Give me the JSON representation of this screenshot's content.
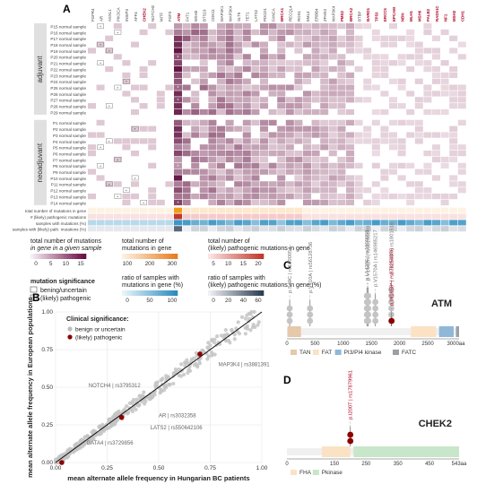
{
  "panels": {
    "A": "A",
    "B": "B",
    "C": "C",
    "D": "D"
  },
  "heatmap": {
    "groups": [
      {
        "label": "adjuvant",
        "samples": [
          "P15 normal sample",
          "P16 normal sample",
          "P17 normal sample",
          "P18 normal sample",
          "P19 normal sample",
          "P20 normal sample",
          "P21 normal sample",
          "P22 normal sample",
          "P23 normal sample",
          "P24 normal sample",
          "P25 normal sample",
          "P26 normal sample",
          "P27 normal sample",
          "P28 normal sample",
          "P29 normal sample"
        ]
      },
      {
        "label": "neoadjuvant",
        "samples": [
          "P1 normal sample",
          "P2 normal sample",
          "P3 normal sample",
          "P4 normal sample",
          "P5 normal sample",
          "P6 normal sample",
          "P7 normal sample",
          "P8 normal sample",
          "P9 normal sample",
          "P10 normal sample",
          "P11 normal sample",
          "P12 normal sample",
          "P13 normal sample",
          "P14 normal sample"
        ]
      }
    ],
    "genes": [
      {
        "name": "FGFR4",
        "path": false
      },
      {
        "name": "AR",
        "path": false
      },
      {
        "name": "ASXL1",
        "path": false
      },
      {
        "name": "PIK3CA",
        "path": false
      },
      {
        "name": "INSIP3",
        "path": false
      },
      {
        "name": "AFF4",
        "path": false
      },
      {
        "name": "CHEK2",
        "path": true
      },
      {
        "name": "NOTCH2",
        "path": false
      },
      {
        "name": "MITF",
        "path": false
      },
      {
        "name": "FGF3",
        "path": false
      },
      {
        "name": "ATM",
        "path": true
      },
      {
        "name": "FAT1",
        "path": false
      },
      {
        "name": "MSH3",
        "path": false
      },
      {
        "name": "BTS19",
        "path": false
      },
      {
        "name": "CDK11",
        "path": false
      },
      {
        "name": "MAP3K1",
        "path": false
      },
      {
        "name": "MAP3K4",
        "path": false
      },
      {
        "name": "SLT5",
        "path": false
      },
      {
        "name": "TET1",
        "path": false
      },
      {
        "name": "LATS2",
        "path": false
      },
      {
        "name": "PDCD1",
        "path": false
      },
      {
        "name": "FANCA",
        "path": false
      },
      {
        "name": "BRCA1",
        "path": true
      },
      {
        "name": "RECQL4",
        "path": false
      },
      {
        "name": "ROS1",
        "path": false
      },
      {
        "name": "EML4",
        "path": false
      },
      {
        "name": "ERBB4",
        "path": false
      },
      {
        "name": "ZFHX3",
        "path": false
      },
      {
        "name": "MAP3K4",
        "path": false
      },
      {
        "name": "PMS2",
        "path": true
      },
      {
        "name": "BRCA2",
        "path": true
      },
      {
        "name": "BTBP",
        "path": false
      },
      {
        "name": "BARD1",
        "path": true
      },
      {
        "name": "TP53",
        "path": true
      },
      {
        "name": "ERCC5",
        "path": true
      },
      {
        "name": "EPCAM",
        "path": true
      },
      {
        "name": "NBN",
        "path": true
      },
      {
        "name": "MLH1",
        "path": true
      },
      {
        "name": "MSH6",
        "path": true
      },
      {
        "name": "PALB2",
        "path": true
      },
      {
        "name": "RAD51C",
        "path": true
      },
      {
        "name": "NF1",
        "path": true
      },
      {
        "name": "MSH2",
        "path": true
      },
      {
        "name": "CDH1",
        "path": true
      }
    ],
    "atm_path_flags": [
      0,
      0,
      0,
      0,
      0,
      1,
      0,
      0,
      0,
      0,
      1,
      0,
      1,
      0,
      0,
      0,
      0,
      0,
      0,
      0,
      0,
      0,
      1,
      0,
      0,
      0,
      0,
      0,
      1
    ],
    "other_path_marks": [
      [
        0,
        1
      ],
      [
        1,
        3
      ],
      [
        3,
        1
      ],
      [
        4,
        2
      ],
      [
        6,
        1
      ],
      [
        9,
        4
      ],
      [
        10,
        3
      ],
      [
        13,
        2
      ],
      [
        16,
        5
      ],
      [
        18,
        2
      ],
      [
        19,
        1
      ],
      [
        21,
        3
      ],
      [
        22,
        1
      ],
      [
        24,
        5
      ],
      [
        25,
        2
      ],
      [
        26,
        4
      ],
      [
        27,
        3
      ],
      [
        28,
        6
      ]
    ],
    "summary_rows": [
      "total number of mutations in gene",
      "# (likely) pathogenic mutations",
      "samples with mutations (%)",
      "samples with (likely) path. mutations (%)"
    ]
  },
  "legends": {
    "mutations_sample": {
      "title1": "total number of mutations",
      "title2": "in gene in a given sample",
      "ticks": [
        "0",
        "5",
        "10",
        "15"
      ]
    },
    "mutations_gene": {
      "title1": "total number of",
      "title2": "mutations in gene",
      "ticks": [
        "100",
        "200",
        "300"
      ]
    },
    "path_gene": {
      "title1": "total number of",
      "title2": "(likely) pathogenic mutations in gene",
      "ticks": [
        "5",
        "10",
        "15",
        "20"
      ]
    },
    "significance": {
      "title": "mutation significance",
      "items": [
        "bening/uncertain",
        "(likely) pathogenic"
      ]
    },
    "ratio": {
      "title1": "ratio of samples with",
      "title2": "mutations in gene (%)",
      "ticks": [
        "0",
        "50",
        "100"
      ]
    },
    "ratio_path": {
      "title1": "ratio of samples with",
      "title2": "(likely) pathogenic mutations in gene (%)",
      "ticks": [
        "0",
        "20",
        "40",
        "60"
      ]
    }
  },
  "chart_data": [
    {
      "type": "scatter",
      "title": "",
      "xlabel": "mean alternate allele frequency in Hungarian BC patients",
      "ylabel": "mean alternate allele frequency in European populations",
      "xlim": [
        0,
        1
      ],
      "ylim": [
        0,
        1
      ],
      "xticks": [
        "0.00",
        "0.25",
        "0.50",
        "0.75",
        "1.00"
      ],
      "yticks": [
        "0.00",
        "0.25",
        "0.50",
        "0.75",
        "1.00"
      ],
      "grid": true,
      "legend": {
        "title": "Clinical significance:",
        "placement": "top-left",
        "items": [
          {
            "name": "benign or uncertain",
            "color": "#bdbdbd"
          },
          {
            "name": "(likely) pathogenic",
            "color": "#8b0000"
          }
        ]
      },
      "pathogenic_points": [
        {
          "x": 0.03,
          "y": 0.0
        },
        {
          "x": 0.32,
          "y": 0.3
        },
        {
          "x": 0.7,
          "y": 0.72
        }
      ],
      "annotations": [
        {
          "text": "NOTCH4 | rs3795312",
          "x": 0.16,
          "y": 0.5
        },
        {
          "text": "MAP3K4 | rs3881391",
          "x": 0.79,
          "y": 0.64
        },
        {
          "text": "AR | rs3032358",
          "x": 0.5,
          "y": 0.3
        },
        {
          "text": "LATS2 | rs550642106",
          "x": 0.46,
          "y": 0.22
        },
        {
          "text": "GATA4 | rs3729856",
          "x": 0.15,
          "y": 0.12
        }
      ]
    },
    {
      "type": "lollipop",
      "gene": "ATM",
      "xlim": [
        0,
        3056
      ],
      "xticks": [
        "0",
        "500",
        "1000",
        "1500",
        "2000",
        "2500",
        "3000aa"
      ],
      "domains": [
        {
          "name": "TAN",
          "start": 10,
          "end": 250,
          "color": "#e6c9ab"
        },
        {
          "name": "FAT",
          "start": 2200,
          "end": 2650,
          "color": "#fbe2c5"
        },
        {
          "name": "PI3/PI4 kinase",
          "start": 2700,
          "end": 2960,
          "color": "#8fb8d8"
        },
        {
          "name": "FATC",
          "start": 3000,
          "end": 3056,
          "color": "#9aa0a6"
        }
      ],
      "variants": [
        {
          "label": "p.S49C | rs1800054",
          "pos": 49,
          "count": 3,
          "path": false
        },
        {
          "label": "p.V410A | rs56128736",
          "pos": 410,
          "count": 3,
          "path": false
        },
        {
          "label": "p.L1420F | rs1800058",
          "pos": 1420,
          "count": 5,
          "path": false
        },
        {
          "label": "p.Y1442H | rs56198889",
          "pos": 1442,
          "count": 5,
          "path": false
        },
        {
          "label": "p.V1570A | rs146985217",
          "pos": 1570,
          "count": 4,
          "path": false
        },
        {
          "label": "p.D1853N | rs1801516",
          "pos": 1853,
          "count": 6,
          "path": false
        },
        {
          "label": "p.W1858* | rs876254076",
          "pos": 1858,
          "count": 1,
          "path": true
        }
      ]
    },
    {
      "type": "lollipop",
      "gene": "CHEK2",
      "xlim": [
        0,
        543
      ],
      "xticks": [
        "0",
        "150",
        "250",
        "350",
        "450",
        "543aa"
      ],
      "domains": [
        {
          "name": "FHA",
          "start": 110,
          "end": 200,
          "color": "#fbe2c5"
        },
        {
          "name": "Pkinase",
          "start": 210,
          "end": 543,
          "color": "#c8e6c9"
        }
      ],
      "variants": [
        {
          "label": "p.I200T | rs17879961",
          "pos": 200,
          "count": 2,
          "path": true
        }
      ]
    }
  ]
}
